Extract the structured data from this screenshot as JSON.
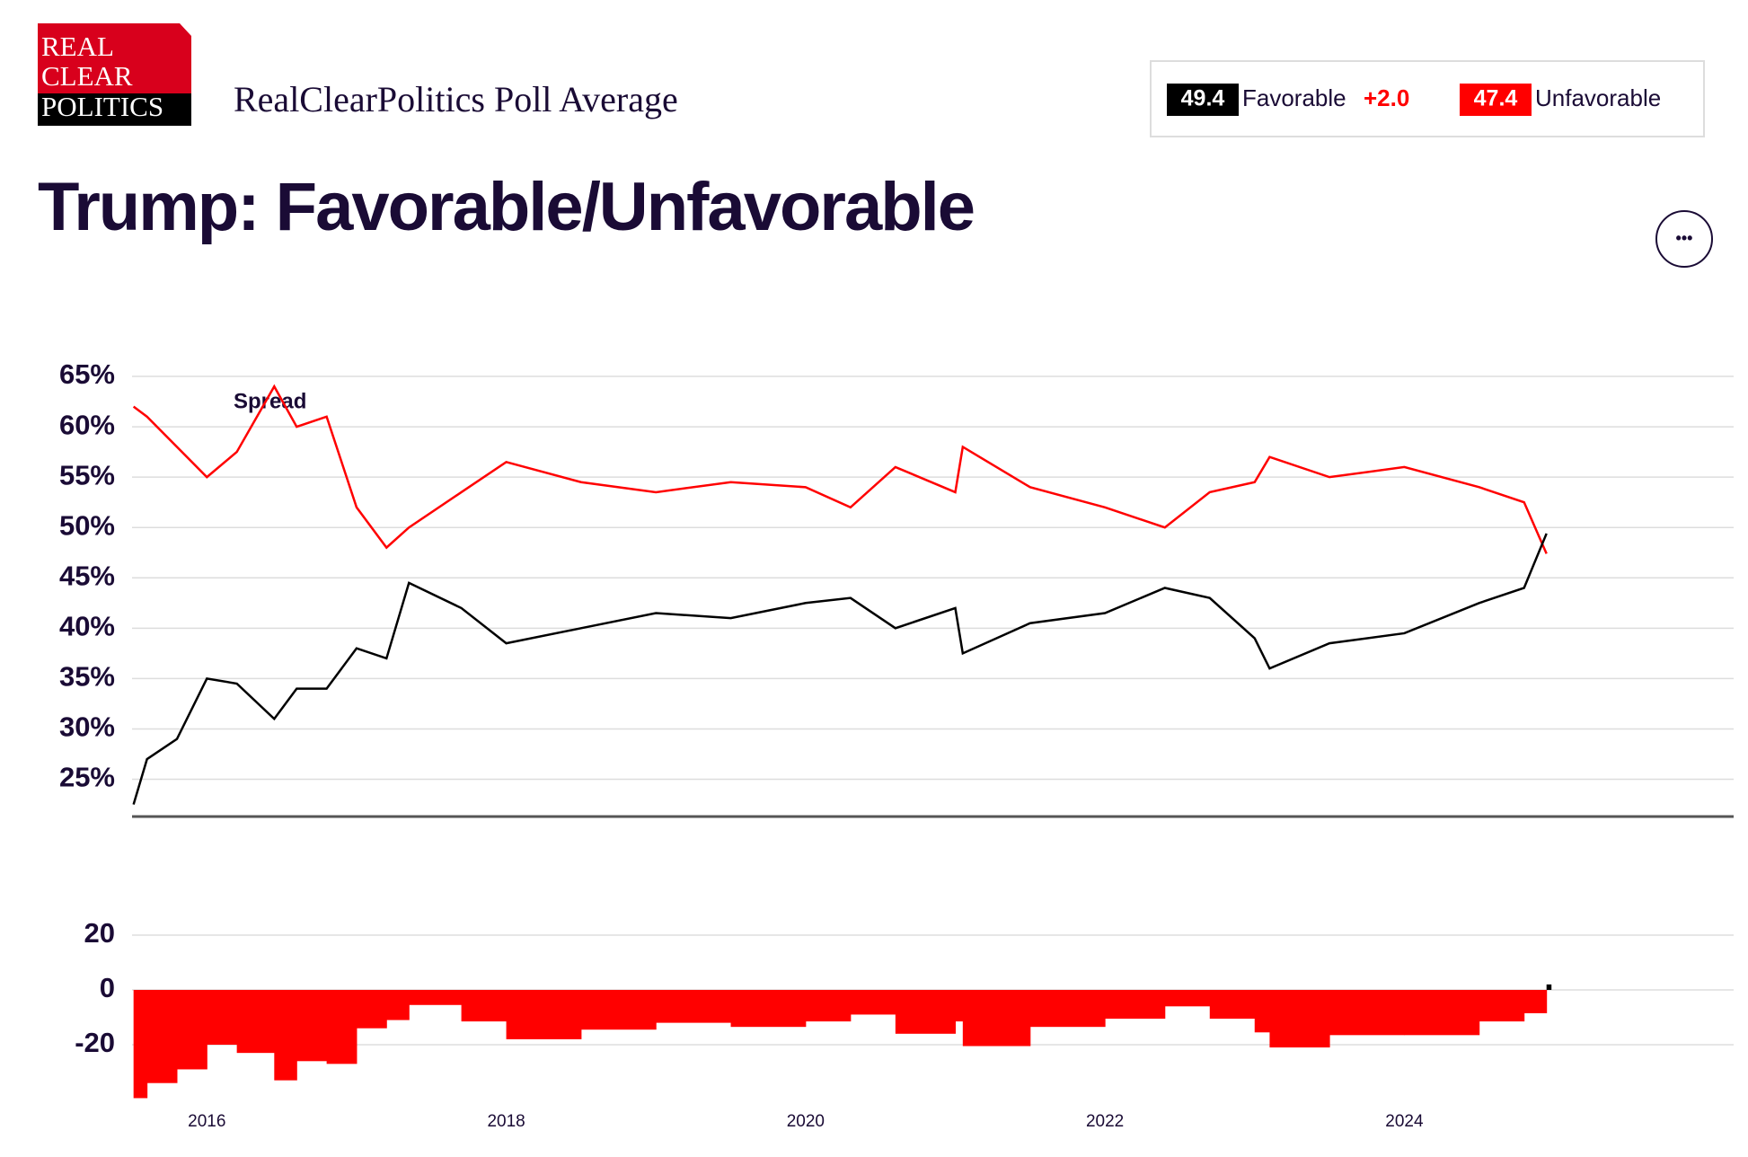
{
  "header": {
    "logo": [
      "REAL",
      "CLEAR",
      "POLITICS"
    ],
    "subtitle": "RealClearPolitics Poll Average",
    "summary": [
      {
        "value": 49.4,
        "name": "Favorable",
        "change": "+2.0",
        "color": "#000000"
      },
      {
        "value": 47.4,
        "name": "Unfavorable",
        "color": "#ff0000"
      }
    ],
    "menu": "•••"
  },
  "chart_data": [
    {
      "type": "line",
      "title": "Trump: Favorable/Unfavorable",
      "x": [
        2015.51,
        2015.6,
        2015.8,
        2016.0,
        2016.2,
        2016.45,
        2016.6,
        2016.8,
        2017.0,
        2017.2,
        2017.35,
        2017.7,
        2018.0,
        2018.5,
        2019.0,
        2019.5,
        2020.0,
        2020.3,
        2020.6,
        2021.0,
        2021.05,
        2021.5,
        2022.0,
        2022.4,
        2022.7,
        2023.0,
        2023.1,
        2023.5,
        2024.0,
        2024.5,
        2024.8,
        2024.95
      ],
      "series": [
        {
          "name": "Unfavorable",
          "color": "#ff0000",
          "values": [
            62,
            61,
            58,
            55,
            57.5,
            64,
            60,
            61,
            52,
            48,
            50,
            53.5,
            56.5,
            54.5,
            53.5,
            54.5,
            54,
            52,
            56,
            53.5,
            58,
            54,
            52,
            50,
            53.5,
            54.5,
            57,
            55,
            56,
            54,
            52.5,
            47.4
          ]
        },
        {
          "name": "Favorable",
          "color": "#000000",
          "values": [
            22.5,
            27,
            29,
            35,
            34.5,
            31,
            34,
            34,
            38,
            37,
            44.5,
            42,
            38.5,
            40,
            41.5,
            41,
            42.5,
            43,
            40,
            42,
            37.5,
            40.5,
            41.5,
            44,
            43,
            39,
            36,
            38.5,
            39.5,
            42.5,
            44,
            49.4
          ]
        }
      ],
      "xlim": [
        2015.5,
        2026.2
      ],
      "ylim": [
        21.3,
        65
      ],
      "yticks": [
        {
          "value": 25,
          "label": "25%"
        },
        {
          "value": 30,
          "label": "30%"
        },
        {
          "value": 35,
          "label": "35%"
        },
        {
          "value": 40,
          "label": "40%"
        },
        {
          "value": 45,
          "label": "45%"
        },
        {
          "value": 50,
          "label": "50%"
        },
        {
          "value": 55,
          "label": "55%"
        },
        {
          "value": 60,
          "label": "60%"
        },
        {
          "value": 65,
          "label": "65%"
        }
      ],
      "grid": true
    },
    {
      "type": "bar",
      "title": "Spread",
      "x": [
        2015.51,
        2015.6,
        2015.8,
        2016.0,
        2016.2,
        2016.45,
        2016.6,
        2016.8,
        2017.0,
        2017.2,
        2017.35,
        2017.7,
        2018.0,
        2018.5,
        2019.0,
        2019.5,
        2020.0,
        2020.3,
        2020.6,
        2021.0,
        2021.05,
        2021.5,
        2022.0,
        2022.4,
        2022.7,
        2023.0,
        2023.1,
        2023.5,
        2024.0,
        2024.5,
        2024.8,
        2024.95
      ],
      "values": [
        -39.5,
        -34,
        -29,
        -20,
        -23,
        -33,
        -26,
        -27,
        -14,
        -11,
        -5.5,
        -11.5,
        -18,
        -14.5,
        -12,
        -13.5,
        -11.5,
        -9,
        -16,
        -11.5,
        -20.5,
        -13.5,
        -10.5,
        -6,
        -10.5,
        -15.5,
        -21,
        -16.5,
        -16.5,
        -11.5,
        -8.5,
        2
      ],
      "colors": {
        "negative": "#ff0000",
        "positive": "#000000"
      },
      "xlim": [
        2015.5,
        2026.2
      ],
      "ylim": [
        -40,
        20
      ],
      "yticks": [
        -20,
        0,
        20
      ],
      "xticks": [
        2016,
        2018,
        2020,
        2022,
        2024
      ],
      "grid": true
    }
  ]
}
